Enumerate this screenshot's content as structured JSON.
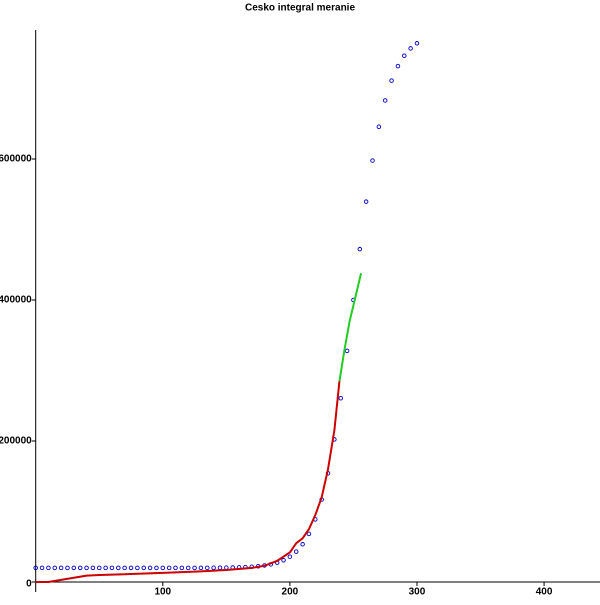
{
  "chart_data": {
    "type": "line",
    "title": "Cesko integral meranie",
    "xlim": [
      0,
      444
    ],
    "ylim": [
      0,
      783000
    ],
    "xticks": [
      100,
      200,
      300,
      400
    ],
    "yticks": [
      0,
      200000,
      400000,
      600000
    ],
    "series": [
      {
        "color": "#0000cc",
        "marker": "circle",
        "x": [
          0,
          5,
          10,
          15,
          20,
          25,
          30,
          35,
          40,
          45,
          50,
          55,
          60,
          65,
          70,
          75,
          80,
          85,
          90,
          95,
          100,
          105,
          110,
          115,
          120,
          125,
          130,
          135,
          140,
          145,
          150,
          155,
          160,
          165,
          170,
          175,
          180,
          185,
          190,
          195,
          200,
          205,
          210,
          215,
          220,
          225,
          230,
          235,
          240,
          245,
          250,
          255,
          260,
          265,
          270,
          275,
          280,
          285,
          290,
          295,
          300
        ],
        "values": [
          20000,
          20000,
          20000,
          20000,
          20000,
          20000,
          20000,
          20000,
          20000,
          20000,
          20000,
          20000,
          20000,
          20000,
          20000,
          20000,
          20000,
          20000,
          20000,
          20000,
          20000,
          20000,
          20000,
          20000,
          20000,
          20050,
          20075,
          20110,
          20165,
          20240,
          20347,
          20509,
          20748,
          21098,
          21612,
          22366,
          23468,
          25087,
          27451,
          30888,
          35866,
          43100,
          53480,
          68220,
          88780,
          116940,
          154280,
          202250,
          260660,
          327820,
          400000,
          472110,
          539480,
          597770,
          645720,
          683060,
          711220,
          731740,
          746510,
          756860,
          764150
        ]
      },
      {
        "color": "#cc0000",
        "marker": "line",
        "x": [
          0,
          10,
          20,
          30,
          40,
          50,
          70,
          100,
          130,
          150,
          170,
          180,
          190,
          200,
          205,
          210,
          215,
          220,
          225,
          230,
          235,
          239
        ],
        "values": [
          0,
          0,
          3000,
          6000,
          9000,
          10000,
          11000,
          13000,
          15000,
          17000,
          20000,
          23000,
          30000,
          42000,
          55000,
          62000,
          75000,
          95000,
          120000,
          160000,
          215000,
          285000
        ]
      },
      {
        "color": "#22cc22",
        "marker": "line",
        "x": [
          239,
          243,
          247,
          251,
          256
        ],
        "values": [
          285000,
          330000,
          370000,
          400000,
          438000
        ]
      }
    ]
  }
}
